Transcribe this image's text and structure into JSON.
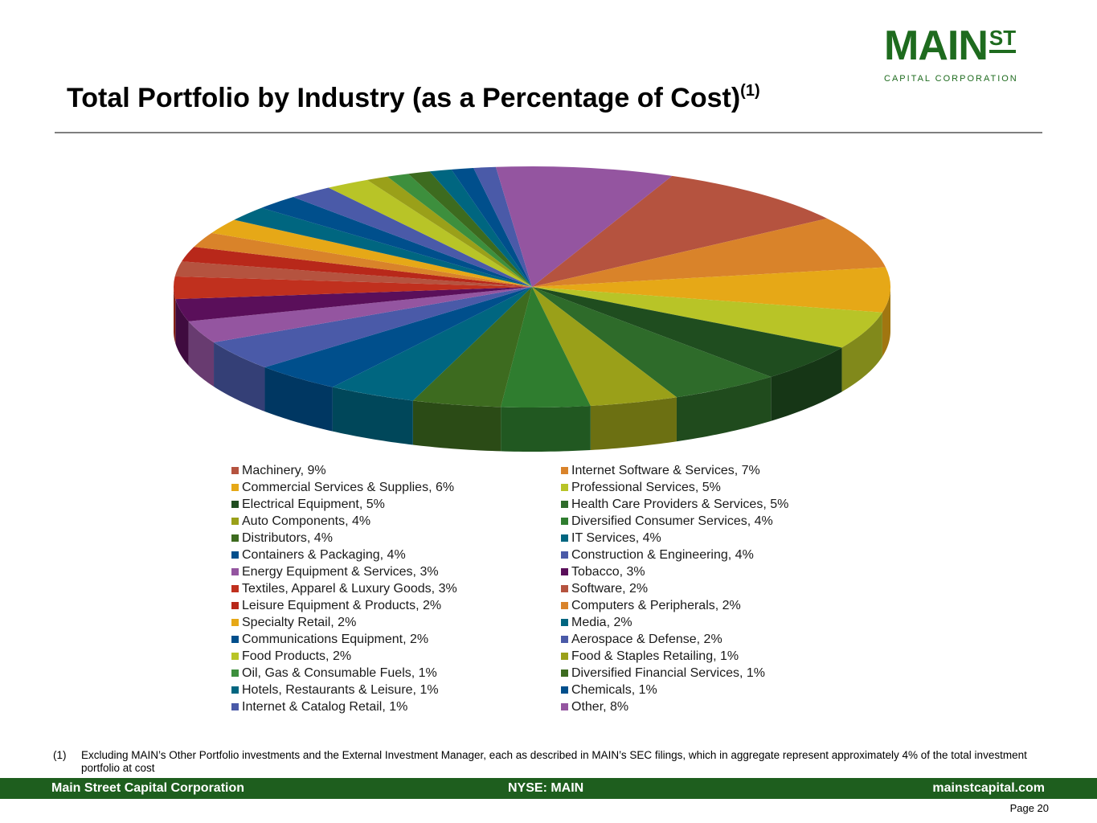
{
  "logo": {
    "main": "MAIN",
    "st": "ST",
    "sub": "CAPITAL CORPORATION",
    "color": "#1e6b1e"
  },
  "title": "Total Portfolio by Industry (as a Percentage of Cost)",
  "title_sup": "(1)",
  "chart_data": {
    "type": "pie",
    "style": "3d",
    "legend_placement": "bottom",
    "slices": [
      {
        "label": "Machinery, 9%",
        "name": "Machinery",
        "value": 9,
        "color": "#b5533f"
      },
      {
        "label": "Internet Software & Services, 7%",
        "name": "Internet Software & Services",
        "value": 7,
        "color": "#d9832a"
      },
      {
        "label": "Commercial Services & Supplies, 6%",
        "name": "Commercial Services & Supplies",
        "value": 6,
        "color": "#e6a817"
      },
      {
        "label": "Professional Services, 5%",
        "name": "Professional Services",
        "value": 5,
        "color": "#b8c427"
      },
      {
        "label": "Electrical Equipment, 5%",
        "name": "Electrical Equipment",
        "value": 5,
        "color": "#1f4d1f"
      },
      {
        "label": "Health Care Providers & Services, 5%",
        "name": "Health Care Providers & Services",
        "value": 5,
        "color": "#2e6b2a"
      },
      {
        "label": "Auto Components, 4%",
        "name": "Auto Components",
        "value": 4,
        "color": "#9aa019"
      },
      {
        "label": "Diversified Consumer Services, 4%",
        "name": "Diversified Consumer Services",
        "value": 4,
        "color": "#2f7d2f"
      },
      {
        "label": "Distributors, 4%",
        "name": "Distributors",
        "value": 4,
        "color": "#3d6b1f"
      },
      {
        "label": "IT Services, 4%",
        "name": "IT Services",
        "value": 4,
        "color": "#006680"
      },
      {
        "label": "Containers & Packaging, 4%",
        "name": "Containers & Packaging",
        "value": 4,
        "color": "#004f8c"
      },
      {
        "label": "Construction & Engineering, 4%",
        "name": "Construction & Engineering",
        "value": 4,
        "color": "#4a5aa8"
      },
      {
        "label": "Energy Equipment & Services, 3%",
        "name": "Energy Equipment & Services",
        "value": 3,
        "color": "#9455a0"
      },
      {
        "label": "Tobacco, 3%",
        "name": "Tobacco",
        "value": 3,
        "color": "#5a0f5a"
      },
      {
        "label": "Textiles, Apparel & Luxury Goods, 3%",
        "name": "Textiles, Apparel & Luxury Goods",
        "value": 3,
        "color": "#c0301e"
      },
      {
        "label": "Software, 2%",
        "name": "Software",
        "value": 2,
        "color": "#b5533f"
      },
      {
        "label": "Leisure Equipment & Products, 2%",
        "name": "Leisure Equipment & Products",
        "value": 2,
        "color": "#b8281a"
      },
      {
        "label": "Computers & Peripherals, 2%",
        "name": "Computers & Peripherals",
        "value": 2,
        "color": "#d9832a"
      },
      {
        "label": "Specialty Retail, 2%",
        "name": "Specialty Retail",
        "value": 2,
        "color": "#e6a817"
      },
      {
        "label": "Media, 2%",
        "name": "Media",
        "value": 2,
        "color": "#006680"
      },
      {
        "label": "Communications Equipment, 2%",
        "name": "Communications Equipment",
        "value": 2,
        "color": "#004f8c"
      },
      {
        "label": "Aerospace & Defense, 2%",
        "name": "Aerospace & Defense",
        "value": 2,
        "color": "#4a5aa8"
      },
      {
        "label": "Food Products, 2%",
        "name": "Food Products",
        "value": 2,
        "color": "#b8c427"
      },
      {
        "label": "Food & Staples Retailing, 1%",
        "name": "Food & Staples Retailing",
        "value": 1,
        "color": "#9aa019"
      },
      {
        "label": "Oil, Gas & Consumable Fuels, 1%",
        "name": "Oil, Gas & Consumable Fuels",
        "value": 1,
        "color": "#3d8f3d"
      },
      {
        "label": "Diversified Financial Services, 1%",
        "name": "Diversified Financial Services",
        "value": 1,
        "color": "#3d6b1f"
      },
      {
        "label": "Hotels, Restaurants & Leisure, 1%",
        "name": "Hotels, Restaurants & Leisure",
        "value": 1,
        "color": "#006680"
      },
      {
        "label": "Chemicals, 1%",
        "name": "Chemicals",
        "value": 1,
        "color": "#004f8c"
      },
      {
        "label": "Internet & Catalog Retail, 1%",
        "name": "Internet & Catalog Retail",
        "value": 1,
        "color": "#4a5aa8"
      },
      {
        "label": "Other, 8%",
        "name": "Other",
        "value": 8,
        "color": "#9455a0"
      }
    ]
  },
  "footnote": {
    "num": "(1)",
    "text": "Excluding MAIN’s Other Portfolio investments and the External Investment Manager, each as described in MAIN’s SEC filings, which in aggregate represent approximately 4% of the total investment portfolio at cost"
  },
  "footer": {
    "left": "Main Street Capital Corporation",
    "center": "NYSE: MAIN",
    "right": "mainstcapital.com",
    "color": "#1e5e1e"
  },
  "page": "Page  20"
}
